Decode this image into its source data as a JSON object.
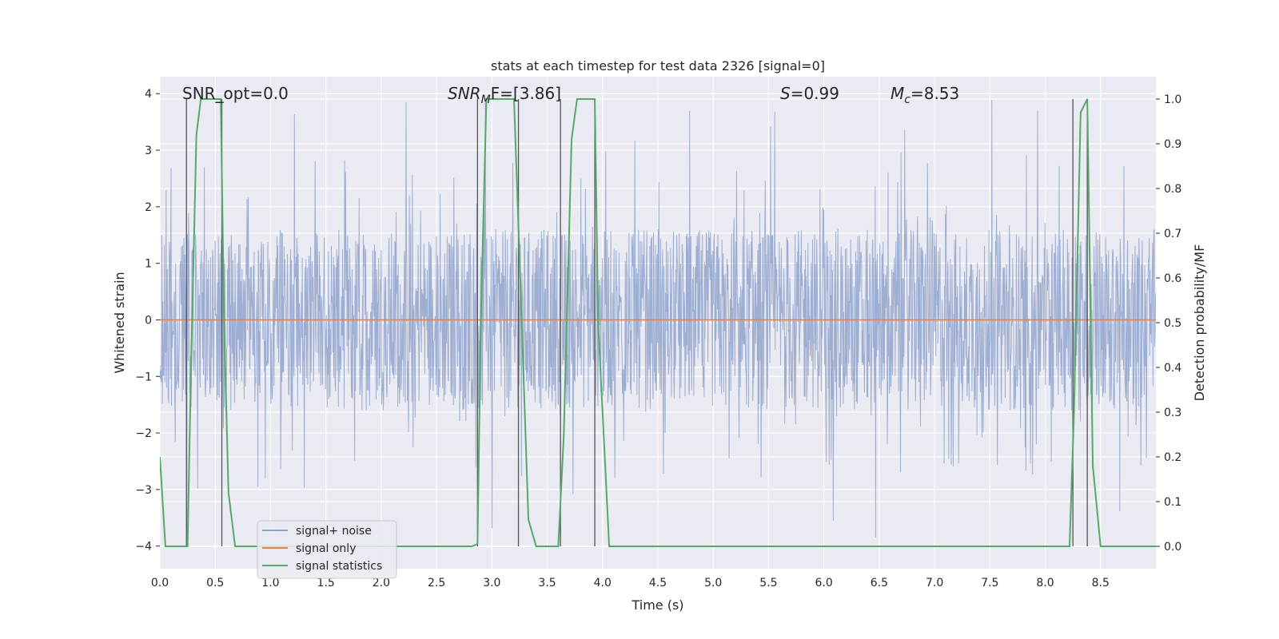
{
  "chart_data": {
    "type": "line",
    "title": "stats at each timestep for test data 2326 [signal=0]",
    "xlabel": "Time (s)",
    "ylabel_left": "Whitened strain",
    "ylabel_right": "Detection probability/MF",
    "xlim": [
      0.0,
      9.0
    ],
    "ylim_left": [
      -4.4,
      4.3
    ],
    "ylim_right": [
      -0.05,
      1.05
    ],
    "xticks": [
      "0.0",
      "0.5",
      "1.0",
      "1.5",
      "2.0",
      "2.5",
      "3.0",
      "3.5",
      "4.0",
      "4.5",
      "5.0",
      "5.5",
      "6.0",
      "6.5",
      "7.0",
      "7.5",
      "8.0",
      "8.5"
    ],
    "yticks_left": [
      "4",
      "3",
      "2",
      "1",
      "0",
      "−1",
      "−2",
      "−3",
      "−4"
    ],
    "yticks_right": [
      "1.0",
      "0.9",
      "0.8",
      "0.7",
      "0.6",
      "0.5",
      "0.4",
      "0.3",
      "0.2",
      "0.1",
      "0.0"
    ],
    "grid": true,
    "legend_placement": "lower-left",
    "annotations": {
      "snr_opt": "SNR_opt=0.0",
      "snr_mf_sym": "SNR",
      "snr_mf_sub": "M",
      "snr_mf_rest": "F=[3.86]",
      "s_sym": "S",
      "s_rest": "=0.99",
      "mc_sym": "M",
      "mc_sub": "c",
      "mc_rest": "=8.53"
    },
    "series": [
      {
        "name": "signal+ noise",
        "color": "#8fa3cc",
        "description_stat": "noise amplitude envelope",
        "envelope_typical": 1.6,
        "envelope_max": 3.9,
        "envelope_min": -4.0
      },
      {
        "name": "signal only",
        "color": "#dd8452",
        "x": [
          0.0,
          9.0
        ],
        "y": [
          0.0,
          0.0
        ]
      },
      {
        "name": "signal statistics",
        "color": "#55a868",
        "x": [
          0.0,
          0.05,
          0.25,
          0.28,
          0.33,
          0.37,
          0.55,
          0.58,
          0.62,
          0.68,
          2.82,
          2.87,
          2.9,
          2.95,
          3.2,
          3.27,
          3.33,
          3.4,
          3.6,
          3.65,
          3.72,
          3.77,
          3.93,
          3.96,
          4.06,
          8.22,
          8.26,
          8.32,
          8.38,
          8.43,
          8.5,
          9.0
        ],
        "y": [
          0.2,
          0.0,
          0.0,
          0.38,
          0.92,
          1.0,
          1.0,
          0.5,
          0.12,
          0.0,
          0.0,
          0.005,
          0.5,
          1.0,
          1.0,
          0.5,
          0.06,
          0.0,
          0.0,
          0.25,
          0.91,
          1.0,
          1.0,
          0.5,
          0.0,
          0.0,
          0.3,
          0.97,
          1.0,
          0.18,
          0.0,
          0.0
        ]
      }
    ],
    "vertical_markers_x": [
      0.24,
      0.56,
      2.87,
      3.24,
      3.62,
      3.93,
      8.25,
      8.38
    ]
  }
}
